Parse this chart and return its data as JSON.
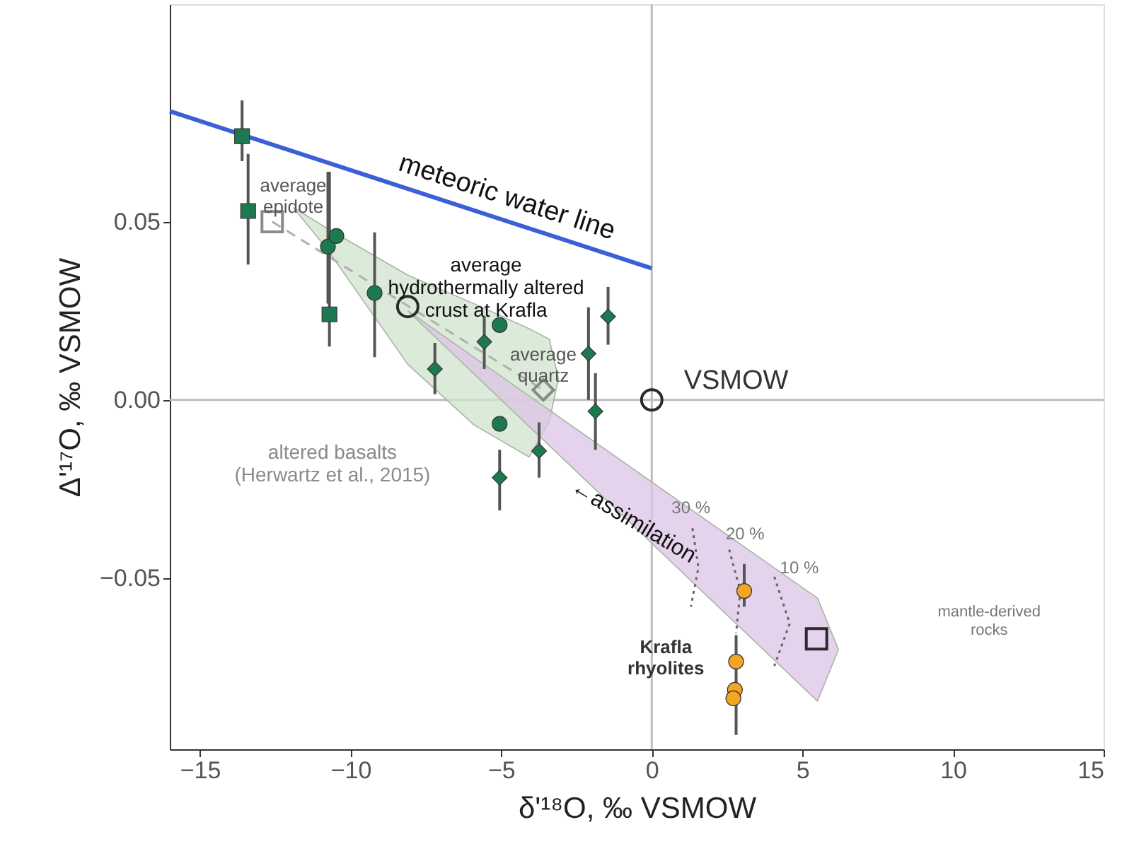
{
  "chart_data": {
    "type": "scatter",
    "xlabel": "δ'¹⁸O, ‰ VSMOW",
    "ylabel": "Δ'¹⁷O, ‰ VSMOW",
    "xlim": [
      -16,
      15
    ],
    "ylim": [
      -0.098,
      0.111
    ],
    "xticks": [
      -15,
      -10,
      -5,
      0,
      5,
      10,
      15
    ],
    "yticks": [
      {
        "value": -0.05,
        "label": "−0.05"
      },
      {
        "value": 0,
        "label": "0.00"
      },
      {
        "value": 0.05,
        "label": "0.05"
      }
    ],
    "grid": false,
    "series": [
      {
        "type": "line",
        "color": "#bdbdbd",
        "x": [
          -16,
          15
        ],
        "values": [
          0,
          0
        ],
        "line_style": "solid"
      },
      {
        "type": "line",
        "color": "#bdbdbd",
        "x": [
          0,
          0
        ],
        "values": [
          -0.098,
          0.111
        ],
        "line_style": "solid"
      },
      {
        "type": "area",
        "color": "#cfe3cc",
        "x": [
          -11.9,
          -10.75,
          -8.1,
          -5.9,
          -4.07,
          -3.4,
          -3.1,
          -3.4,
          -4.07,
          -5.9,
          -8.1,
          -10.75,
          -11.9
        ],
        "values": [
          0.054,
          0.048,
          0.035,
          0.027,
          0.02,
          0.017,
          0.006,
          -0.006,
          -0.016,
          -0.007,
          0.01,
          0.042,
          0.054
        ]
      },
      {
        "type": "area",
        "color": "#dcc3e6",
        "x": [
          -8.1,
          5.5,
          6.2,
          5.5,
          -8.1
        ],
        "values": [
          0.025,
          -0.0556,
          -0.07,
          -0.0845,
          0.025
        ]
      },
      {
        "type": "line",
        "color": "#3b5fd6",
        "x": [
          -16,
          0
        ],
        "values": [
          0.081,
          0.0369
        ],
        "line_style": "solid"
      },
      {
        "type": "line",
        "color": "#b0b0b0",
        "x": [
          -12.6,
          -3.6
        ],
        "values": [
          0.05,
          0.0028
        ],
        "line_style": "dashed"
      },
      {
        "type": "line",
        "color": "#666666",
        "x": [
          1.35,
          1.55,
          1.3
        ],
        "values": [
          -0.036,
          -0.047,
          -0.058
        ],
        "line_style": "dotted"
      },
      {
        "type": "line",
        "color": "#666666",
        "x": [
          2.57,
          2.94,
          2.8
        ],
        "values": [
          -0.042,
          -0.0536,
          -0.0655
        ],
        "line_style": "dotted"
      },
      {
        "type": "line",
        "color": "#666666",
        "x": [
          4.07,
          4.58,
          4.07
        ],
        "values": [
          -0.0496,
          -0.0627,
          -0.0746
        ],
        "line_style": "dotted"
      },
      {
        "color": "#1d7a50",
        "marker": "square",
        "x": [
          -13.6,
          -13.4,
          -10.7
        ],
        "values": [
          0.074,
          0.053,
          0.024
        ],
        "errors": [
          [
            0.067,
            0.084
          ],
          [
            0.038,
            0.069
          ],
          [
            0.015,
            0.064
          ]
        ]
      },
      {
        "color": "#1d7a50",
        "marker": "circle",
        "x": [
          -10.75,
          -10.47,
          -9.2,
          -5.05,
          -5.05
        ],
        "values": [
          0.043,
          0.046,
          0.03,
          0.021,
          -0.0067
        ],
        "errors": [
          [
            0.027,
            0.064
          ],
          null,
          [
            0.012,
            0.047
          ],
          null,
          null
        ]
      },
      {
        "color": "#1d7a50",
        "marker": "diamond",
        "x": [
          -7.2,
          -5.56,
          -5.05,
          -3.74,
          -2.1,
          -1.87,
          -1.45
        ],
        "values": [
          0.0087,
          0.0163,
          -0.0218,
          -0.0143,
          0.013,
          -0.0032,
          0.0234
        ],
        "errors": [
          [
            0.0016,
            0.016
          ],
          [
            0.0087,
            0.0234
          ],
          [
            -0.031,
            -0.014
          ],
          [
            -0.0218,
            -0.0063
          ],
          [
            0,
            0.026
          ],
          [
            -0.014,
            0.0075
          ],
          [
            0.0155,
            0.0317
          ]
        ]
      },
      {
        "color": "#f5a524",
        "marker": "circle",
        "x": [
          3.07,
          2.8,
          2.76,
          2.71
        ],
        "values": [
          -0.0536,
          -0.0734,
          -0.0813,
          -0.0837
        ],
        "errors": [
          [
            -0.058,
            -0.046
          ],
          [
            -0.094,
            -0.066
          ],
          null,
          null
        ]
      },
      {
        "color": "#8a8a8a",
        "marker": "square",
        "x": [
          -12.6
        ],
        "values": [
          0.05
        ]
      },
      {
        "color": "#8a8a8a",
        "marker": "diamond",
        "x": [
          -3.6
        ],
        "values": [
          0.0028
        ]
      },
      {
        "color": "#2b2b2b",
        "marker": "circle",
        "x": [
          -8.1,
          0
        ],
        "values": [
          0.0262,
          0
        ]
      },
      {
        "color": "#2b2b2b",
        "marker": "square",
        "x": [
          5.47
        ],
        "values": [
          -0.067
        ]
      }
    ],
    "annotations": [
      "meteoric water line",
      "average\nepidote",
      "average\nhydrothermally altered\ncrust at Krafla",
      "average\nquartz",
      "VSMOW",
      "altered basalts\n(Herwartz et al., 2015)",
      "←assimilation",
      "30 %",
      "20 %",
      "10 %",
      "mantle-derived\nrocks",
      "Krafla\nrhyolites"
    ]
  }
}
